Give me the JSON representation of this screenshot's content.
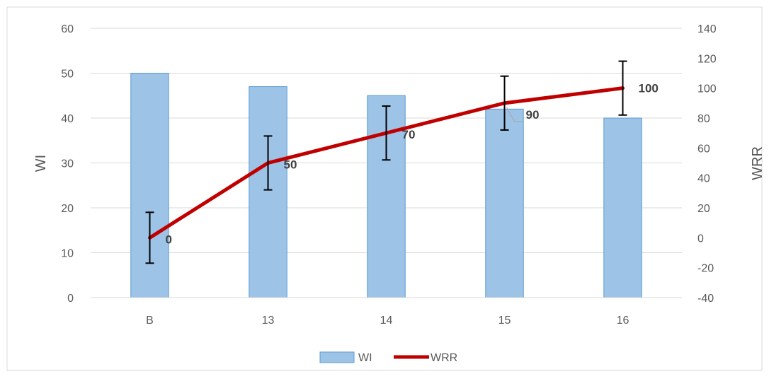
{
  "chart_data": {
    "type": "bar",
    "categories": [
      "B",
      "13",
      "14",
      "15",
      "16"
    ],
    "series": [
      {
        "name": "WI",
        "type": "bar",
        "axis": "left",
        "values": [
          50,
          47,
          45,
          42,
          40
        ]
      },
      {
        "name": "WRR",
        "type": "line",
        "axis": "right",
        "values": [
          0,
          50,
          70,
          90,
          100
        ],
        "data_labels": [
          "0",
          "50",
          "70",
          "90",
          "100"
        ],
        "error_bars": [
          17,
          18,
          18,
          18,
          18
        ]
      }
    ],
    "y_left": {
      "label": "WI",
      "min": 0,
      "max": 60,
      "step": 10,
      "ticks": [
        "0",
        "10",
        "20",
        "30",
        "40",
        "50",
        "60"
      ]
    },
    "y_right": {
      "label": "WRR",
      "min": -40,
      "max": 140,
      "step": 20,
      "ticks": [
        "-40",
        "-20",
        "0",
        "20",
        "40",
        "60",
        "80",
        "100",
        "120",
        "140"
      ]
    },
    "grid": true,
    "legend": "bottom-center",
    "colors": {
      "bar_fill": "#9dc3e6",
      "bar_stroke": "#5b9bd5",
      "line": "#c00000",
      "error": "#000000",
      "grid": "#d9d9d9",
      "text": "#595959"
    }
  }
}
